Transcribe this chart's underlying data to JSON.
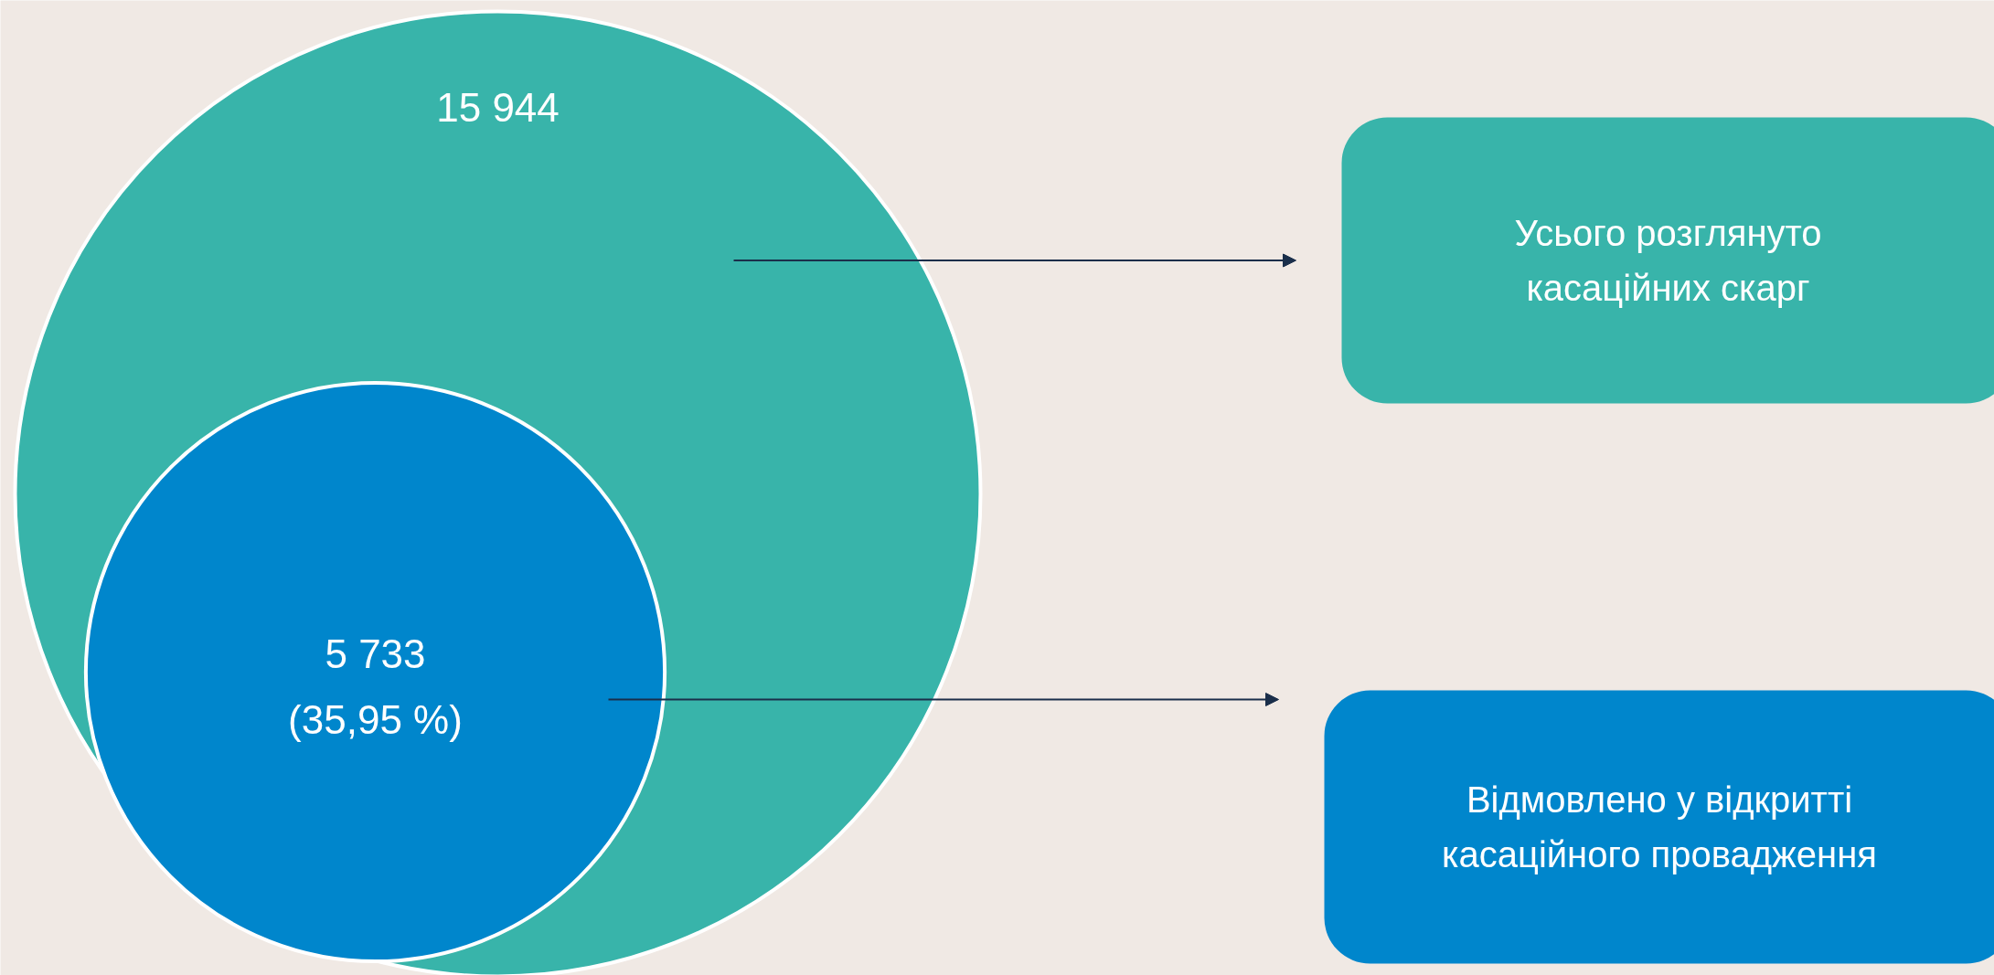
{
  "chart_data": {
    "type": "other",
    "categories": [
      "Усього розглянуто касаційних скарг",
      "Відмовлено у відкритті касаційного провадження"
    ],
    "values": [
      15944,
      5733
    ],
    "value_labels": [
      "15 944",
      "5 733"
    ],
    "colors": [
      "#38b4aa",
      "#0086cc"
    ],
    "annotations": [
      "(35,95 %)"
    ]
  }
}
